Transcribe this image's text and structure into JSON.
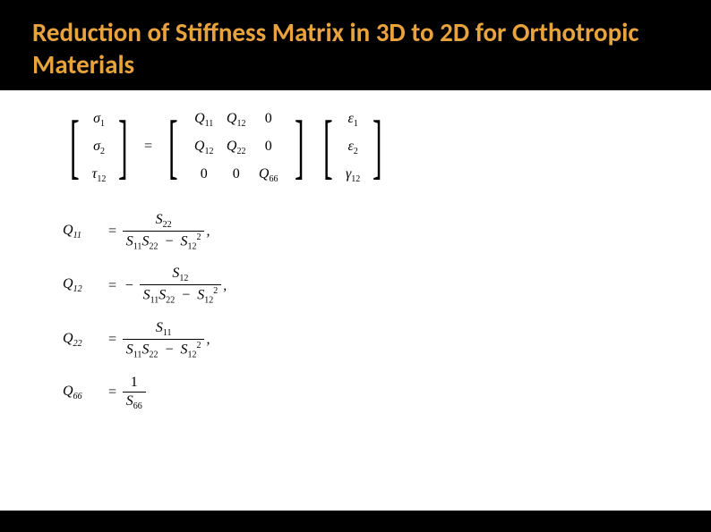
{
  "header": {
    "title": "Reduction of Stiffness Matrix in 3D to 2D for Orthotropic Materials"
  },
  "matrix": {
    "stress": [
      "σ₁",
      "σ₂",
      "τ₁₂"
    ],
    "q": [
      [
        "Q₁₁",
        "Q₁₂",
        "0"
      ],
      [
        "Q₁₂",
        "Q₂₂",
        "0"
      ],
      [
        "0",
        "0",
        "Q₆₆"
      ]
    ],
    "strain": [
      "ε₁",
      "ε₂",
      "γ₁₂"
    ]
  },
  "formulas": {
    "q11": {
      "lhs": "Q₁₁",
      "num": "S₂₂",
      "den": "S₁₁S₂₂ − S₁₂²"
    },
    "q12": {
      "lhs": "Q₁₂",
      "num": "S₁₂",
      "den": "S₁₁S₂₂ − S₁₂²"
    },
    "q22": {
      "lhs": "Q₂₂",
      "num": "S₁₁",
      "den": "S₁₁S₂₂ − S₁₂²"
    },
    "q66": {
      "lhs": "Q₆₆",
      "num": "1",
      "den": "S₆₆"
    }
  },
  "sym": {
    "eq": "=",
    "minus": "−",
    "comma": ","
  }
}
